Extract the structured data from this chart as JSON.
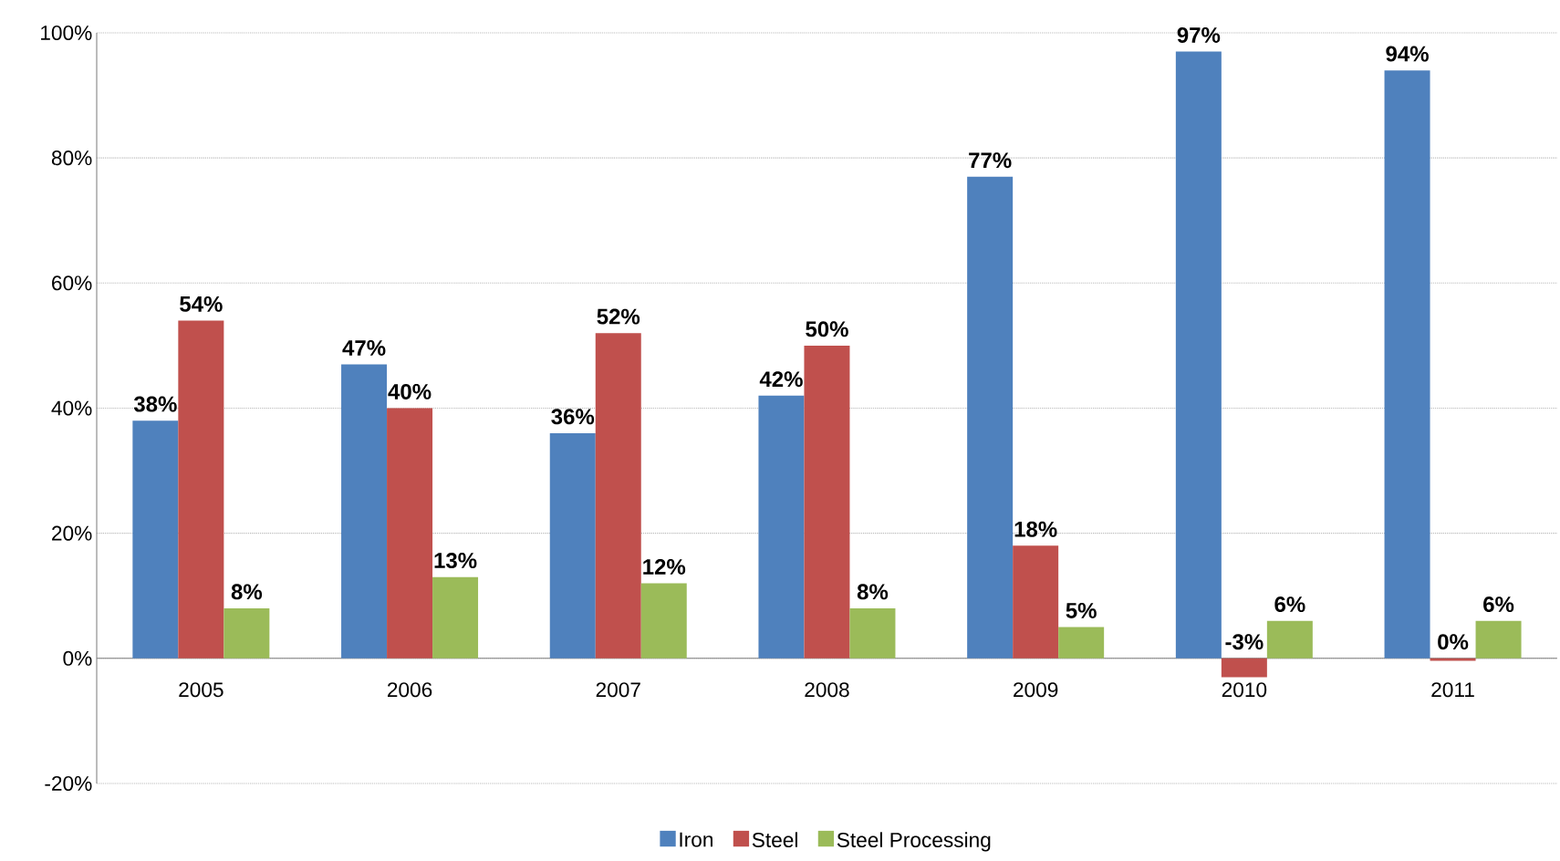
{
  "chart_data": {
    "type": "bar",
    "categories": [
      "2005",
      "2006",
      "2007",
      "2008",
      "2009",
      "2010",
      "2011"
    ],
    "series": [
      {
        "name": "Iron",
        "color": "#4f81bd",
        "values": [
          38,
          47,
          36,
          42,
          77,
          97,
          94
        ],
        "value_labels": [
          "38%",
          "47%",
          "36%",
          "42%",
          "77%",
          "97%",
          "94%"
        ]
      },
      {
        "name": "Steel",
        "color": "#c0504d",
        "values": [
          54,
          40,
          52,
          50,
          18,
          -3,
          -0.4
        ],
        "value_labels": [
          "54%",
          "40%",
          "52%",
          "50%",
          "18%",
          "-3%",
          "0%"
        ]
      },
      {
        "name": "Steel Processing",
        "color": "#9bbb59",
        "values": [
          8,
          13,
          12,
          8,
          5,
          6,
          6
        ],
        "value_labels": [
          "8%",
          "13%",
          "12%",
          "8%",
          "5%",
          "6%",
          "6%"
        ]
      }
    ],
    "ylim": [
      -20,
      100
    ],
    "yticks": [
      {
        "value": -20,
        "label": "-20%"
      },
      {
        "value": 0,
        "label": "0%"
      },
      {
        "value": 20,
        "label": "20%"
      },
      {
        "value": 40,
        "label": "40%"
      },
      {
        "value": 60,
        "label": "60%"
      },
      {
        "value": 80,
        "label": "80%"
      },
      {
        "value": 100,
        "label": "100%"
      }
    ],
    "grid": "y",
    "legend": "bottom"
  }
}
